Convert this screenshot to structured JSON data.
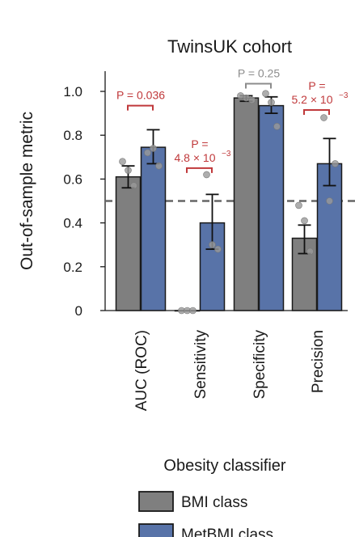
{
  "chart_data": {
    "type": "bar",
    "title": "TwinsUK cohort",
    "xlabel": "Obesity classifier",
    "ylabel": "Out-of-sample metric",
    "ylim": [
      0,
      1.1
    ],
    "yticks": [
      "0",
      "0.2",
      "0.4",
      "0.6",
      "0.8",
      "1.0"
    ],
    "ytick_values": [
      0,
      0.2,
      0.4,
      0.6,
      0.8,
      1.0
    ],
    "categories": [
      "AUC (ROC)",
      "Sensitivity",
      "Specificity",
      "Precision"
    ],
    "reference_line": 0.5,
    "series": [
      {
        "name": "BMI class",
        "color": "#7f7f7f",
        "values": [
          0.61,
          0.0,
          0.97,
          0.33
        ],
        "error_low": [
          0.56,
          0.0,
          0.955,
          0.26
        ],
        "error_high": [
          0.66,
          0.0,
          0.98,
          0.39
        ],
        "points": [
          [
            0.68,
            0.64,
            0.57
          ],
          [
            0.0,
            0.0,
            0.0
          ],
          [
            0.98,
            0.97,
            0.96
          ],
          [
            0.48,
            0.41,
            0.27
          ]
        ]
      },
      {
        "name": "MetBMI class",
        "color": "#5873a8",
        "values": [
          0.745,
          0.4,
          0.935,
          0.67
        ],
        "error_low": [
          0.67,
          0.28,
          0.9,
          0.57
        ],
        "error_high": [
          0.825,
          0.53,
          0.975,
          0.785
        ],
        "points": [
          [
            0.72,
            0.74,
            0.66
          ],
          [
            0.62,
            0.3,
            0.28
          ],
          [
            0.99,
            0.95,
            0.84
          ],
          [
            0.88,
            0.5,
            0.67
          ]
        ]
      }
    ],
    "annotations": [
      {
        "category": 0,
        "color": "#c0393b",
        "text": "P = 0.036",
        "y_bracket": 0.935
      },
      {
        "category": 1,
        "color": "#c0393b",
        "text": "P =",
        "text2": "4.8 × 10",
        "exp": "−3",
        "y_bracket": 0.65
      },
      {
        "category": 2,
        "color": "#8c8c8c",
        "text": "P = 0.25",
        "y_bracket": 1.035
      },
      {
        "category": 3,
        "color": "#c0393b",
        "text": "P =",
        "text2": "5.2 × 10",
        "exp": "−3",
        "y_bracket": 0.915
      }
    ],
    "legend_position": "bottom"
  }
}
